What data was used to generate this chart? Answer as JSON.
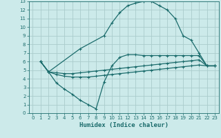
{
  "bg_color": "#cceaea",
  "grid_color": "#aacccc",
  "line_color": "#1a6b6b",
  "xlabel": "Humidex (Indice chaleur)",
  "xlim": [
    -0.5,
    23.5
  ],
  "ylim": [
    0,
    13
  ],
  "xticks": [
    0,
    1,
    2,
    3,
    4,
    5,
    6,
    7,
    8,
    9,
    10,
    11,
    12,
    13,
    14,
    15,
    16,
    17,
    18,
    19,
    20,
    21,
    22,
    23
  ],
  "yticks": [
    0,
    1,
    2,
    3,
    4,
    5,
    6,
    7,
    8,
    9,
    10,
    11,
    12,
    13
  ],
  "curve_top_x": [
    1,
    2,
    6,
    9,
    10,
    11,
    12,
    13,
    14,
    15,
    16,
    17,
    18,
    19,
    20,
    21,
    22,
    23
  ],
  "curve_top_y": [
    6.0,
    4.8,
    7.5,
    9.0,
    10.5,
    11.7,
    12.5,
    12.8,
    13.0,
    13.0,
    12.5,
    12.0,
    11.0,
    9.0,
    8.5,
    7.0,
    5.5,
    5.5
  ],
  "curve_mid1_x": [
    1,
    2,
    3,
    4,
    5,
    6,
    7,
    8,
    9,
    10,
    11,
    12,
    13,
    14,
    15,
    16,
    17,
    18,
    19,
    20,
    21,
    22,
    23
  ],
  "curve_mid1_y": [
    6.0,
    4.8,
    4.7,
    4.6,
    4.6,
    4.7,
    4.8,
    4.9,
    5.0,
    5.1,
    5.2,
    5.3,
    5.4,
    5.5,
    5.6,
    5.7,
    5.8,
    5.9,
    6.0,
    6.1,
    6.2,
    5.5,
    5.5
  ],
  "curve_mid2_x": [
    1,
    2,
    3,
    4,
    5,
    6,
    7,
    8,
    9,
    10,
    11,
    12,
    13,
    14,
    15,
    16,
    17,
    18,
    19,
    20,
    21,
    22,
    23
  ],
  "curve_mid2_y": [
    6.0,
    4.8,
    4.5,
    4.3,
    4.2,
    4.2,
    4.2,
    4.3,
    4.4,
    4.5,
    4.6,
    4.7,
    4.8,
    4.9,
    5.0,
    5.1,
    5.2,
    5.3,
    5.4,
    5.5,
    5.6,
    5.5,
    5.5
  ],
  "curve_bot_x": [
    1,
    2,
    3,
    4,
    5,
    6,
    7,
    8,
    9,
    10,
    11,
    12,
    13,
    14,
    15,
    16,
    17,
    18,
    19,
    20,
    21,
    22,
    23
  ],
  "curve_bot_y": [
    6.0,
    4.8,
    3.5,
    2.8,
    2.2,
    1.5,
    1.0,
    0.5,
    3.6,
    5.5,
    6.5,
    6.8,
    6.8,
    6.7,
    6.7,
    6.7,
    6.7,
    6.7,
    6.7,
    6.7,
    6.7,
    5.5,
    5.5
  ]
}
